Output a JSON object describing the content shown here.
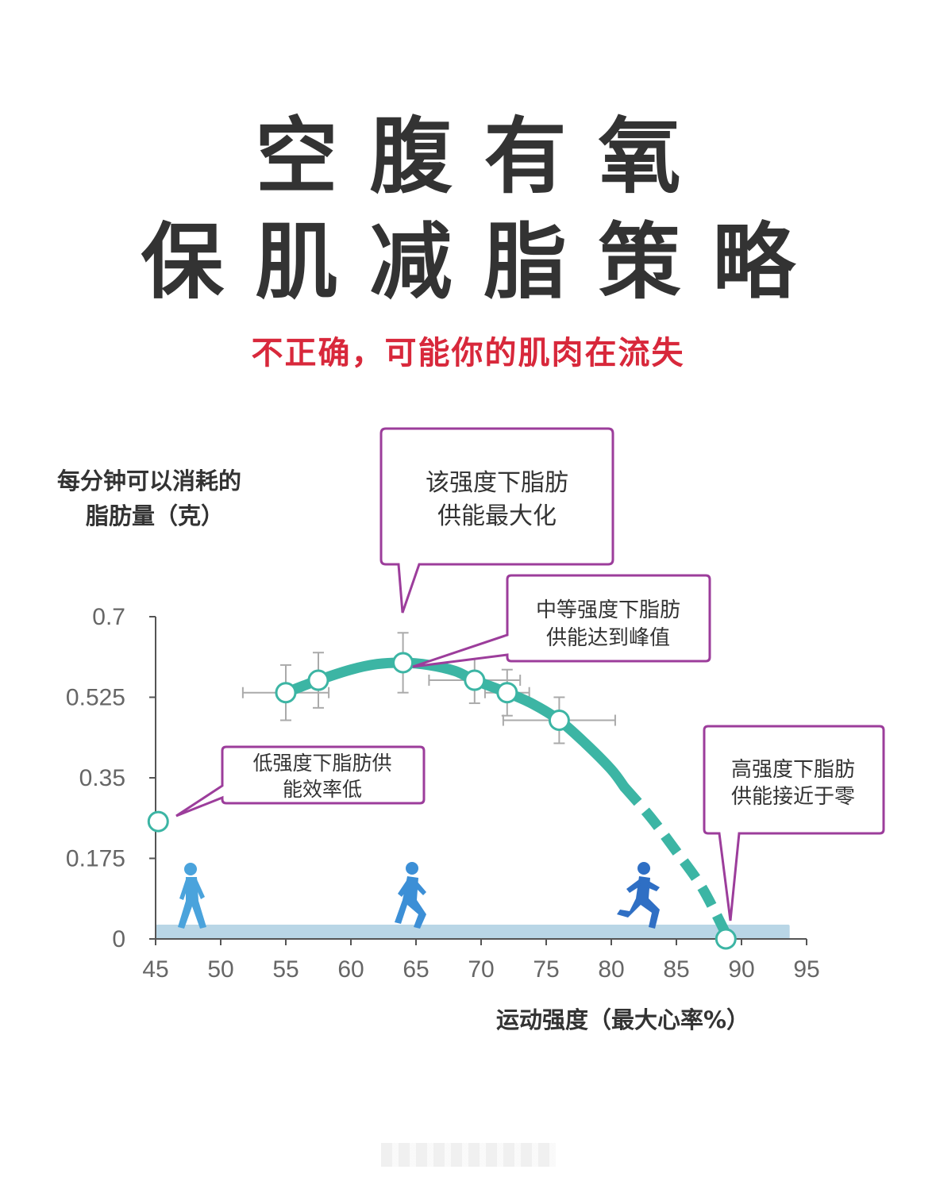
{
  "title_line1": "空腹有氧",
  "title_line2": "保肌减脂策略",
  "subtitle": "不正确，可能你的肌肉在流失",
  "colors": {
    "title": "#333333",
    "subtitle": "#d8283b",
    "curve": "#3cb5a4",
    "callout_border": "#9c3d9b",
    "ground": "#b9d6e6",
    "figure": "#4a90d6"
  },
  "chart_data": {
    "type": "line",
    "title": "",
    "ylabel_line1": "每分钟可以消耗的",
    "ylabel_line2": "脂肪量（克）",
    "xlabel": "运动强度（最大心率%）",
    "xlim": [
      45,
      95
    ],
    "ylim": [
      0,
      0.7
    ],
    "x_ticks": [
      45,
      50,
      55,
      60,
      65,
      70,
      75,
      80,
      85,
      90,
      95
    ],
    "y_ticks": [
      0,
      0.175,
      0.35,
      0.525,
      0.7
    ],
    "y_tick_labels": [
      "0",
      "0.175",
      "0.35",
      "0.525",
      "0.7"
    ],
    "grid": false,
    "curve": {
      "x": [
        55,
        57.5,
        60,
        62,
        64,
        66,
        68,
        69.5,
        72,
        74,
        76,
        78,
        80,
        81
      ],
      "y": [
        0.535,
        0.562,
        0.585,
        0.597,
        0.6,
        0.595,
        0.582,
        0.562,
        0.535,
        0.51,
        0.475,
        0.425,
        0.368,
        0.33
      ]
    },
    "dashed_curve": {
      "x": [
        81,
        83,
        85,
        87,
        89
      ],
      "y": [
        0.33,
        0.265,
        0.19,
        0.11,
        0.0
      ]
    },
    "points": [
      {
        "x": 45.2,
        "y": 0.255,
        "xerr": 0,
        "yerr": 0
      },
      {
        "x": 55,
        "y": 0.535,
        "xerr": 3.3,
        "yerr": 0.06
      },
      {
        "x": 57.5,
        "y": 0.562,
        "xerr": 0,
        "yerr": 0.06
      },
      {
        "x": 64,
        "y": 0.6,
        "xerr": 0,
        "yerr": 0.065
      },
      {
        "x": 69.5,
        "y": 0.562,
        "xerr": 3.5,
        "yerr": 0.05
      },
      {
        "x": 72,
        "y": 0.535,
        "xerr": 1.7,
        "yerr": 0.05
      },
      {
        "x": 76,
        "y": 0.475,
        "xerr": 4.3,
        "yerr": 0.05
      },
      {
        "x": 88.8,
        "y": 0.0,
        "xerr": 0,
        "yerr": 0
      }
    ],
    "annotations": [
      {
        "id": "top",
        "line1": "该强度下脂肪",
        "line2": "供能最大化"
      },
      {
        "id": "mid",
        "line1": "中等强度下脂肪",
        "line2": "供能达到峰值"
      },
      {
        "id": "low",
        "line1": "低强度下脂肪供",
        "line2": "能效率低"
      },
      {
        "id": "high",
        "line1": "高强度下脂肪",
        "line2": "供能接近于零"
      }
    ]
  }
}
